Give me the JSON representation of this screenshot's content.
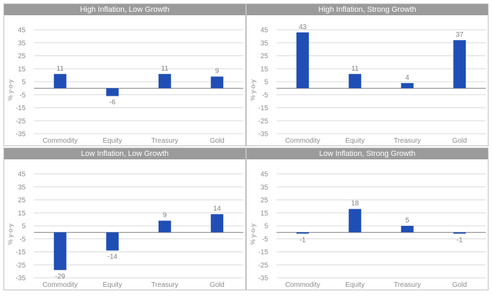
{
  "chart_data": [
    {
      "type": "bar",
      "title": "High Inflation, Low Growth",
      "categories": [
        "Commodity",
        "Equity",
        "Treasury",
        "Gold"
      ],
      "values": [
        11,
        -6,
        11,
        9
      ],
      "ylabel": "% y-o-y",
      "ylim": [
        -35,
        45
      ],
      "yticks": [
        45,
        35,
        25,
        15,
        5,
        -5,
        -15,
        -25,
        -35
      ],
      "color": "#1f4fb5"
    },
    {
      "type": "bar",
      "title": "High Inflation, Strong Growth",
      "categories": [
        "Commodity",
        "Equity",
        "Treasury",
        "Gold"
      ],
      "values": [
        43,
        11,
        4,
        37
      ],
      "ylabel": "% y-o-y",
      "ylim": [
        -35,
        45
      ],
      "yticks": [
        45,
        35,
        25,
        15,
        5,
        -5,
        -15,
        -25,
        -35
      ],
      "color": "#1f4fb5"
    },
    {
      "type": "bar",
      "title": "Low Inflation, Low Growth",
      "categories": [
        "Commodity",
        "Equity",
        "Treasury",
        "Gold"
      ],
      "values": [
        -29,
        -14,
        9,
        14
      ],
      "ylabel": "% y-o-y",
      "ylim": [
        -35,
        45
      ],
      "yticks": [
        45,
        35,
        25,
        15,
        5,
        -5,
        -15,
        -25,
        -35
      ],
      "color": "#1f4fb5"
    },
    {
      "type": "bar",
      "title": "Low Inflation, Strong Growth",
      "categories": [
        "Commodity",
        "Equity",
        "Treasury",
        "Gold"
      ],
      "values": [
        -1,
        18,
        5,
        -1
      ],
      "ylabel": "% y-o-y",
      "ylim": [
        -35,
        45
      ],
      "yticks": [
        45,
        35,
        25,
        15,
        5,
        -5,
        -15,
        -25,
        -35
      ],
      "color": "#1f4fb5"
    }
  ]
}
